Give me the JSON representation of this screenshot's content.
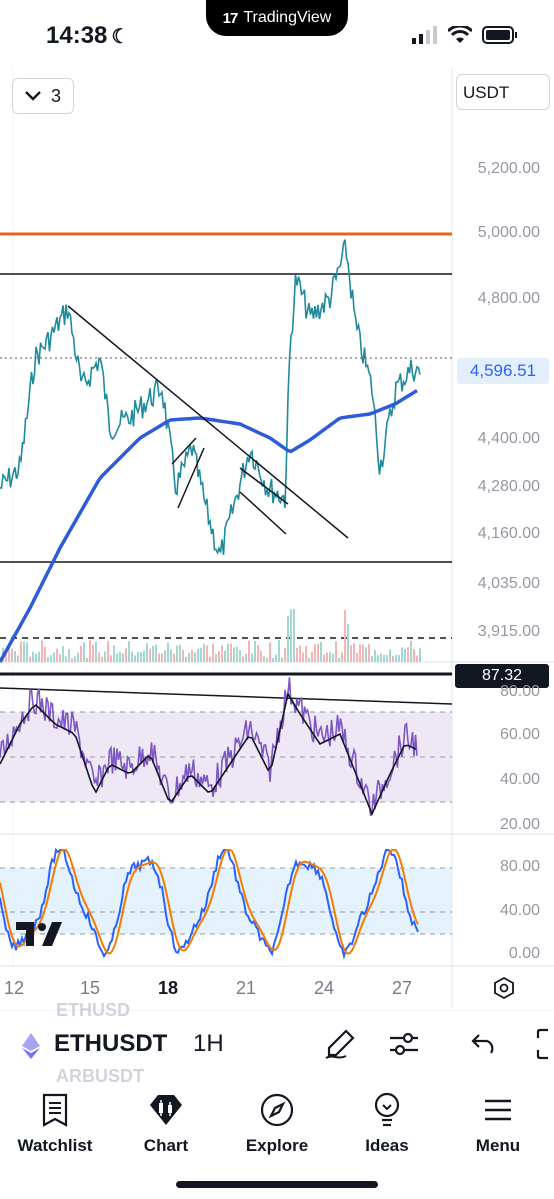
{
  "status": {
    "time": "14:38"
  },
  "island": {
    "brand": "TradingView"
  },
  "toolbar": {
    "interval_count": "3",
    "currency": "USDT"
  },
  "price_axis": {
    "ticks": [
      "5,200.00",
      "5,000.00",
      "4,800.00",
      "4,400.00",
      "4,280.00",
      "4,160.00",
      "4,035.00",
      "3,915.00"
    ],
    "current_price": "4,596.51"
  },
  "rsi": {
    "value": "87.32",
    "ticks": [
      "80.00",
      "60.00",
      "40.00",
      "20.00"
    ]
  },
  "stoch": {
    "ticks": [
      "80.00",
      "40.00",
      "0.00"
    ]
  },
  "time_axis": {
    "labels": [
      {
        "text": "12",
        "bold": false
      },
      {
        "text": "15",
        "bold": false
      },
      {
        "text": "18",
        "bold": true
      },
      {
        "text": "21",
        "bold": false
      },
      {
        "text": "24",
        "bold": false
      },
      {
        "text": "27",
        "bold": false
      }
    ]
  },
  "symbol_bar": {
    "ghost_above": "ETHUSD",
    "symbol": "ETHUSDT",
    "interval": "1H",
    "ghost_below": "ARBUSDT",
    "tools": [
      "draw-icon",
      "indicators-icon",
      "undo-icon",
      "fullscreen-icon"
    ]
  },
  "nav": {
    "items": [
      {
        "label": "Watchlist",
        "icon": "watchlist-icon"
      },
      {
        "label": "Chart",
        "icon": "chart-icon"
      },
      {
        "label": "Explore",
        "icon": "explore-icon"
      },
      {
        "label": "Ideas",
        "icon": "ideas-icon"
      },
      {
        "label": "Menu",
        "icon": "menu-icon"
      }
    ]
  },
  "colors": {
    "price_line": "#1f8b9c",
    "ma_line": "#2e5bd8",
    "resistance": "#e8621f",
    "rsi_line": "#7e57c2",
    "rsi_band": "#ede7f6",
    "stoch_k": "#2962ff",
    "stoch_d": "#f57c00",
    "stoch_band": "#e3f2fd"
  }
}
